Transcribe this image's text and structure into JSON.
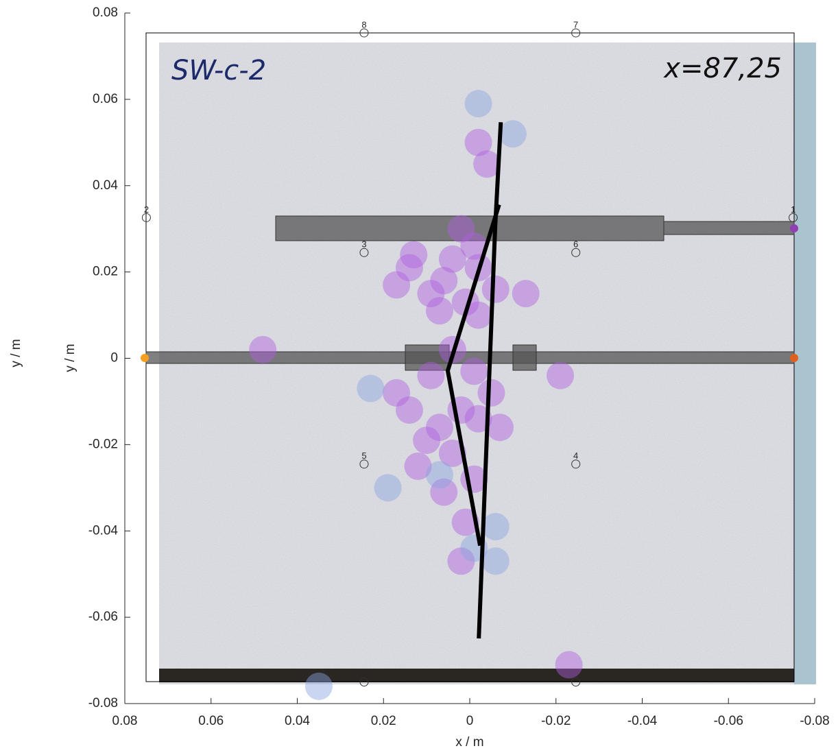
{
  "chart_data": {
    "type": "scatter",
    "xlabel": "x / m",
    "ylabel": "y / m",
    "ylabel_outer": "y / m",
    "annotations": [
      "SW-c-2",
      "x=87,25"
    ],
    "xlim": [
      0.08,
      -0.08
    ],
    "ylim": [
      -0.08,
      0.08
    ],
    "xticks": [
      0.08,
      0.06,
      0.04,
      0.02,
      0,
      -0.02,
      -0.04,
      -0.06,
      -0.08
    ],
    "yticks": [
      -0.08,
      -0.06,
      -0.04,
      -0.02,
      0,
      0.02,
      0.04,
      0.06,
      0.08
    ],
    "series": [
      {
        "color": "#b060e0",
        "x": [
          0.002,
          -0.001,
          0.004,
          -0.002,
          0.006,
          0.009,
          0.001,
          0.007,
          -0.002,
          -0.006,
          0.013,
          0.017,
          0.004,
          -0.001,
          0.009,
          0.017,
          0.014,
          0.007,
          0.002,
          -0.002,
          0.01,
          0.004,
          -0.001,
          0.006,
          0.001,
          0.002,
          -0.013,
          -0.021,
          -0.005,
          -0.002,
          -0.004,
          0.048,
          -0.023,
          0.014,
          -0.007,
          0.012
        ],
        "y": [
          0.03,
          0.026,
          0.023,
          0.021,
          0.018,
          0.015,
          0.013,
          0.011,
          0.01,
          0.016,
          0.024,
          0.017,
          0.002,
          -0.003,
          -0.004,
          -0.008,
          -0.012,
          -0.016,
          -0.012,
          -0.014,
          -0.019,
          -0.022,
          -0.028,
          -0.031,
          -0.038,
          -0.047,
          0.015,
          -0.004,
          -0.008,
          0.05,
          0.045,
          0.002,
          -0.071,
          0.021,
          -0.016,
          -0.025
        ]
      },
      {
        "color": "#8aa4e0",
        "x": [
          -0.002,
          -0.01,
          0.023,
          0.019,
          -0.006,
          -0.006,
          0.035,
          -0.001,
          0.007
        ],
        "y": [
          0.059,
          0.052,
          -0.007,
          -0.03,
          -0.039,
          -0.047,
          -0.076,
          -0.044,
          -0.027
        ]
      }
    ],
    "fractures": [
      {
        "color": "#000000",
        "x": [
          -0.0072,
          -0.0059,
          -0.0021
        ],
        "y": [
          0.0547,
          0.0305,
          -0.0649
        ]
      },
      {
        "color": "#000000",
        "x": [
          -0.0068,
          0.0051,
          -0.0024
        ],
        "y": [
          0.0356,
          -0.0029,
          -0.0434
        ]
      }
    ],
    "sensors": [
      {
        "label": "8",
        "x": 0.0245,
        "y": 0.0754
      },
      {
        "label": "7",
        "x": -0.0246,
        "y": 0.0754
      },
      {
        "label": "2",
        "x": 0.075,
        "y": 0.0326
      },
      {
        "label": "1",
        "x": -0.075,
        "y": 0.0326
      },
      {
        "label": "3",
        "x": 0.0245,
        "y": 0.0245
      },
      {
        "label": "6",
        "x": -0.0246,
        "y": 0.0245
      },
      {
        "label": "5",
        "x": 0.0245,
        "y": -0.0245
      },
      {
        "label": "4",
        "x": -0.0246,
        "y": -0.0245
      },
      {
        "x": 0.0245,
        "y": -0.075
      },
      {
        "x": -0.0246,
        "y": -0.075
      }
    ]
  }
}
